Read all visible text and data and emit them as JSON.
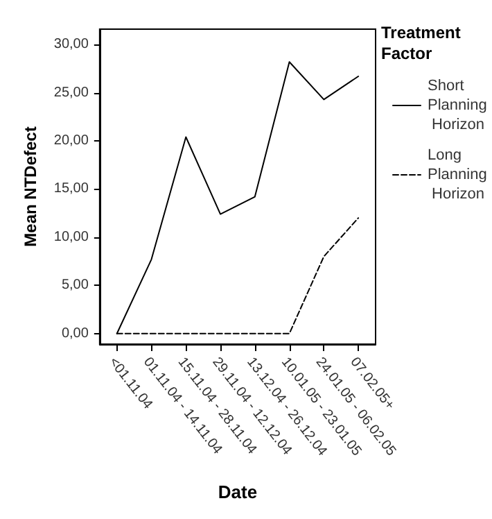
{
  "chart_data": {
    "type": "line",
    "xlabel": "Date",
    "ylabel": "Mean NTDefect",
    "legend_title": "Treatment Factor",
    "categories": [
      "<01.11.04",
      "01.11.04 - 14.11.04",
      "15.11.04 - 28.11.04",
      "29.11.04 - 12.12.04",
      "13.12.04 - 26.12.04",
      "10.01.05 - 23.01.05",
      "24.01.05 - 06.02.05",
      "07.02.05+"
    ],
    "series": [
      {
        "name": "Short Planning Horizon",
        "color": "#000000",
        "line_style": "solid",
        "values": [
          0,
          7.7,
          20.4,
          12.4,
          14.2,
          28.2,
          24.3,
          26.7
        ]
      },
      {
        "name": "Long Planning Horizon",
        "color": "#000000",
        "line_style": "dashed",
        "values": [
          0,
          0,
          0,
          0,
          0,
          0,
          8,
          12
        ]
      }
    ],
    "ylim": [
      -1.1,
      31.6
    ],
    "yticks": [
      {
        "value": 0,
        "label": "0,00"
      },
      {
        "value": 5,
        "label": "5,00"
      },
      {
        "value": 10,
        "label": "10,00"
      },
      {
        "value": 15,
        "label": "15,00"
      },
      {
        "value": 20,
        "label": "20,00"
      },
      {
        "value": 25,
        "label": "25,00"
      },
      {
        "value": 30,
        "label": "30,00"
      }
    ],
    "marker": "none",
    "grid": false,
    "legend": "right"
  }
}
